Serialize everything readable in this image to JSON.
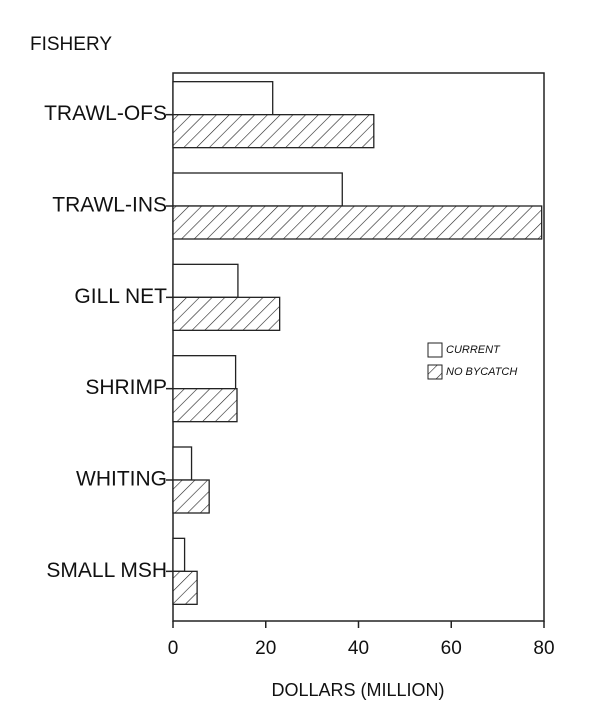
{
  "chart_data": {
    "type": "bar",
    "orientation": "horizontal",
    "y_axis_label": "FISHERY",
    "x_axis_label": "DOLLARS (MILLION)",
    "categories": [
      "TRAWL-OFS",
      "TRAWL-INS",
      "GILL NET",
      "SHRIMP",
      "WHITING",
      "SMALL MSH"
    ],
    "series": [
      {
        "name": "CURRENT",
        "color": "#ffffff",
        "hatch": false,
        "values": [
          21.5,
          36.5,
          14,
          13.5,
          4,
          2.5
        ]
      },
      {
        "name": "NO BYCATCH",
        "color": "#ffffff",
        "hatch": true,
        "values": [
          43.3,
          79.5,
          23,
          13.8,
          7.8,
          5.2
        ]
      }
    ],
    "xlim": [
      0,
      80
    ],
    "xticks": [
      0,
      20,
      40,
      60,
      80
    ],
    "grid": false
  }
}
